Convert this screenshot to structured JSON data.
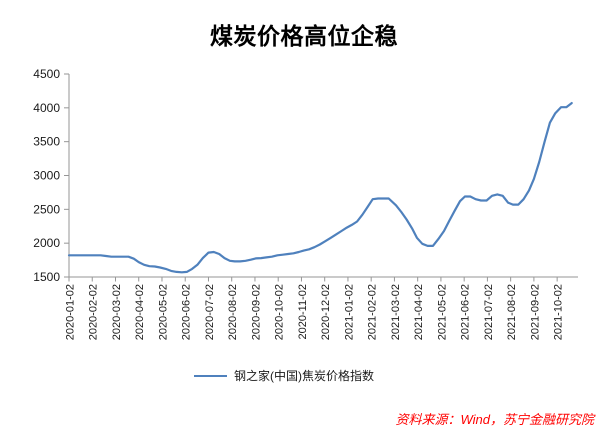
{
  "title": "煤炭价格高位企稳",
  "legend": {
    "label": "钢之家(中国)焦炭价格指数"
  },
  "source": "资料来源：Wind，苏宁金融研究院",
  "colors": {
    "line": "#4F81BD",
    "axis": "#969696",
    "tick_text": "#1a1a1a",
    "title_text": "#000000",
    "source_text": "#FF0000"
  },
  "chart_data": {
    "type": "line",
    "title": "煤炭价格高位企稳",
    "series_name": "钢之家(中国)焦炭价格指数",
    "xlabel": "",
    "ylabel": "",
    "ylim": [
      1500,
      4500
    ],
    "y_ticks": [
      1500,
      2000,
      2500,
      3000,
      3500,
      4000,
      4500
    ],
    "grid": false,
    "legend_position": "bottom",
    "x_tick_labels": [
      "2020-01-02",
      "2020-02-02",
      "2020-03-02",
      "2020-04-02",
      "2020-05-02",
      "2020-06-02",
      "2020-07-02",
      "2020-08-02",
      "2020-09-02",
      "2020-10-02",
      "2020-11-02",
      "2020-12-02",
      "2021-01-02",
      "2021-02-02",
      "2021-03-02",
      "2021-04-02",
      "2021-05-02",
      "2021-06-02",
      "2021-07-02",
      "2021-08-02",
      "2021-09-02",
      "2021-10-02"
    ],
    "x": [
      "2020-01-02",
      "2020-01-09",
      "2020-01-16",
      "2020-01-23",
      "2020-01-30",
      "2020-02-06",
      "2020-02-13",
      "2020-02-20",
      "2020-02-27",
      "2020-03-05",
      "2020-03-12",
      "2020-03-19",
      "2020-03-26",
      "2020-04-02",
      "2020-04-09",
      "2020-04-16",
      "2020-04-23",
      "2020-04-30",
      "2020-05-07",
      "2020-05-14",
      "2020-05-21",
      "2020-05-28",
      "2020-06-04",
      "2020-06-11",
      "2020-06-18",
      "2020-06-25",
      "2020-07-02",
      "2020-07-09",
      "2020-07-16",
      "2020-07-23",
      "2020-07-30",
      "2020-08-06",
      "2020-08-13",
      "2020-08-20",
      "2020-08-27",
      "2020-09-03",
      "2020-09-10",
      "2020-09-17",
      "2020-09-24",
      "2020-10-01",
      "2020-10-08",
      "2020-10-15",
      "2020-10-22",
      "2020-10-29",
      "2020-11-05",
      "2020-11-12",
      "2020-11-19",
      "2020-11-26",
      "2020-12-03",
      "2020-12-10",
      "2020-12-17",
      "2020-12-24",
      "2020-12-31",
      "2021-01-07",
      "2021-01-14",
      "2021-01-21",
      "2021-01-28",
      "2021-02-04",
      "2021-02-11",
      "2021-02-18",
      "2021-02-25",
      "2021-03-04",
      "2021-03-11",
      "2021-03-18",
      "2021-03-25",
      "2021-04-01",
      "2021-04-08",
      "2021-04-15",
      "2021-04-22",
      "2021-04-29",
      "2021-05-06",
      "2021-05-13",
      "2021-05-20",
      "2021-05-27",
      "2021-06-03",
      "2021-06-10",
      "2021-06-17",
      "2021-06-24",
      "2021-07-01",
      "2021-07-08",
      "2021-07-15",
      "2021-07-22",
      "2021-07-29",
      "2021-08-05",
      "2021-08-12",
      "2021-08-19",
      "2021-08-26",
      "2021-09-02",
      "2021-09-09",
      "2021-09-16",
      "2021-09-23",
      "2021-09-30",
      "2021-10-07",
      "2021-10-14",
      "2021-10-21"
    ],
    "values": [
      1820,
      1820,
      1820,
      1820,
      1820,
      1820,
      1820,
      1810,
      1800,
      1800,
      1800,
      1800,
      1770,
      1720,
      1680,
      1660,
      1655,
      1640,
      1620,
      1590,
      1575,
      1570,
      1575,
      1620,
      1680,
      1780,
      1860,
      1870,
      1840,
      1780,
      1740,
      1730,
      1730,
      1740,
      1755,
      1775,
      1780,
      1790,
      1800,
      1820,
      1830,
      1840,
      1850,
      1870,
      1890,
      1910,
      1940,
      1980,
      2030,
      2080,
      2130,
      2180,
      2230,
      2270,
      2320,
      2420,
      2540,
      2650,
      2660,
      2660,
      2660,
      2560,
      2460,
      2350,
      2220,
      2080,
      1990,
      1960,
      1960,
      2060,
      2180,
      2330,
      2480,
      2620,
      2690,
      2690,
      2650,
      2630,
      2630,
      2700,
      2720,
      2700,
      2600,
      2570,
      2570,
      2650,
      2780,
      2950,
      3200,
      3500,
      3780,
      3920,
      4010,
      4010,
      4070
    ]
  }
}
